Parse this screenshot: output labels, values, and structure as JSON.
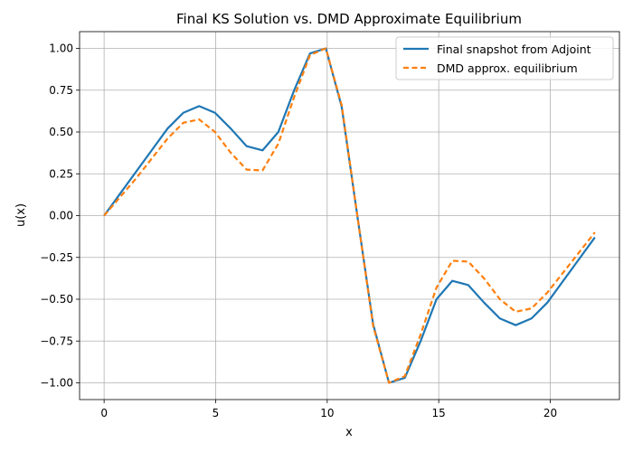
{
  "chart_data": {
    "type": "line",
    "title": "Final KS Solution vs. DMD Approximate Equilibrium",
    "xlabel": "x",
    "ylabel": "u(x)",
    "xlim": [
      -1.1,
      23.1
    ],
    "ylim": [
      -1.1,
      1.1
    ],
    "x_ticks": [
      0,
      5,
      10,
      15,
      20
    ],
    "x_tick_labels": [
      "0",
      "5",
      "10",
      "15",
      "20"
    ],
    "y_ticks": [
      -1.0,
      -0.75,
      -0.5,
      -0.25,
      0.0,
      0.25,
      0.5,
      0.75,
      1.0
    ],
    "y_tick_labels": [
      "−1.00",
      "−0.75",
      "−0.50",
      "−0.25",
      "0.00",
      "0.25",
      "0.50",
      "0.75",
      "1.00"
    ],
    "grid": true,
    "legend_position": "top-right",
    "x": [
      0,
      0.71,
      1.42,
      2.13,
      2.84,
      3.55,
      4.26,
      4.97,
      5.68,
      6.39,
      7.1,
      7.81,
      8.52,
      9.23,
      9.94,
      10.65,
      11.35,
      12.06,
      12.77,
      13.48,
      14.19,
      14.9,
      15.61,
      16.32,
      17.03,
      17.74,
      18.45,
      19.16,
      19.87,
      20.58,
      21.29,
      22.0
    ],
    "series": [
      {
        "name": "Final snapshot from Adjoint",
        "color": "#1f77b4",
        "style": "solid",
        "values": [
          0.0,
          0.13,
          0.26,
          0.39,
          0.52,
          0.615,
          0.655,
          0.615,
          0.52,
          0.415,
          0.39,
          0.5,
          0.75,
          0.97,
          1.0,
          0.65,
          0.0,
          -0.65,
          -1.0,
          -0.97,
          -0.75,
          -0.5,
          -0.39,
          -0.415,
          -0.52,
          -0.615,
          -0.655,
          -0.615,
          -0.52,
          -0.39,
          -0.26,
          -0.13
        ]
      },
      {
        "name": "DMD approx. equilibrium",
        "color": "#ff7f0e",
        "style": "dashed",
        "values": [
          0.0,
          0.11,
          0.22,
          0.34,
          0.46,
          0.555,
          0.575,
          0.5,
          0.375,
          0.275,
          0.27,
          0.43,
          0.71,
          0.96,
          1.0,
          0.66,
          0.0,
          -0.66,
          -1.0,
          -0.96,
          -0.71,
          -0.43,
          -0.27,
          -0.275,
          -0.375,
          -0.5,
          -0.575,
          -0.555,
          -0.46,
          -0.34,
          -0.22,
          -0.1
        ]
      }
    ]
  }
}
